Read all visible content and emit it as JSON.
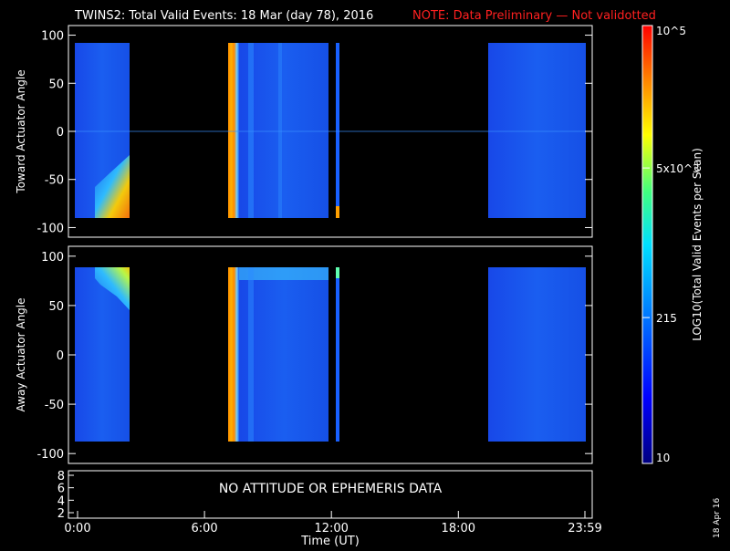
{
  "header": {
    "title": "TWINS2: Total Valid Events: 18 Mar (day  78), 2016",
    "note": "NOTE: Data Preliminary — Not validotted"
  },
  "colors": {
    "background": "#000000",
    "note": "#ff2020",
    "axes": "#ffffff"
  },
  "footer": {
    "date_stamp": "18 Apr 16"
  },
  "chart_data": [
    {
      "type": "heatmap",
      "panel": "top",
      "ylabel": "Toward Actuator Angle",
      "xlim": [
        "0:00",
        "23:59"
      ],
      "ylim": [
        -110,
        110
      ],
      "yticks": [
        100,
        50,
        0,
        -50,
        -100
      ],
      "data_segments": [
        {
          "start": "0:15",
          "end": "2:30",
          "description_level": "low with enhancement near -90 after 1:00"
        },
        {
          "start": "7:15",
          "end": "12:00",
          "description_level": "very high 7:15-7:45, then low"
        },
        {
          "start": "12:20",
          "end": "12:30",
          "description_level": "narrow strip"
        },
        {
          "start": "19:30",
          "end": "23:59",
          "description_level": "low"
        }
      ]
    },
    {
      "type": "heatmap",
      "panel": "middle",
      "ylabel": "Away Actuator Angle",
      "xlim": [
        "0:00",
        "23:59"
      ],
      "ylim": [
        -110,
        110
      ],
      "yticks": [
        100,
        50,
        0,
        -50,
        -100
      ],
      "data_segments": [
        {
          "start": "0:15",
          "end": "2:30",
          "description_level": "low with enhancement near +90 after 1:00"
        },
        {
          "start": "7:15",
          "end": "12:00",
          "description_level": "very high 7:15-7:45, then low"
        },
        {
          "start": "12:20",
          "end": "12:30",
          "description_level": "narrow strip"
        },
        {
          "start": "19:30",
          "end": "23:59",
          "description_level": "low"
        }
      ]
    },
    {
      "type": "table",
      "panel": "bottom",
      "yticks": [
        8,
        6,
        4,
        2
      ],
      "message": "NO ATTITUDE OR EPHEMERIS DATA",
      "xticks": [
        "0:00",
        "6:00",
        "12:00",
        "18:00",
        "23:59"
      ],
      "xlabel": "Time (UT)"
    }
  ],
  "colorbar": {
    "label": "LOG10(Total Valid Events per Scan)",
    "scale": "log",
    "range": [
      10,
      100000
    ],
    "ticks": [
      "10",
      "215",
      "5x10^3",
      "10^5"
    ]
  }
}
